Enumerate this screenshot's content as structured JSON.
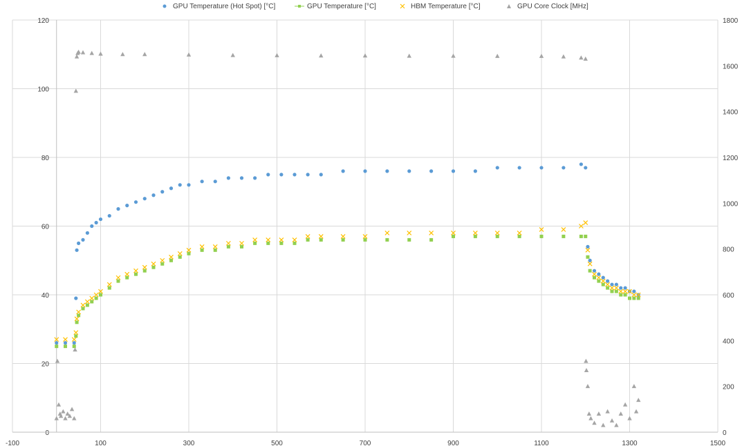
{
  "chart_data": {
    "type": "scatter",
    "title": "",
    "xlabel": "",
    "ylabel": "",
    "y2label": "",
    "xlim": [
      -100,
      1500
    ],
    "ylim": [
      0,
      120
    ],
    "y2lim": [
      0,
      1800
    ],
    "x_ticks": [
      "-100",
      "100",
      "300",
      "500",
      "700",
      "900",
      "1100",
      "1300",
      "1500"
    ],
    "y_ticks": [
      "0",
      "20",
      "40",
      "60",
      "80",
      "100",
      "120"
    ],
    "y2_ticks": [
      "0",
      "200",
      "400",
      "600",
      "800",
      "1000",
      "1200",
      "1400",
      "1600",
      "1800"
    ],
    "grid": true,
    "legend_position": "top",
    "series": [
      {
        "name": "GPU Temperature (Hot Spot) [°C]",
        "axis": "left",
        "marker": "circle",
        "color": "#5B9BD5",
        "x": [
          0,
          20,
          40,
          44,
          46,
          50,
          60,
          70,
          80,
          90,
          100,
          120,
          140,
          160,
          180,
          200,
          220,
          240,
          260,
          280,
          300,
          330,
          360,
          390,
          420,
          450,
          480,
          510,
          540,
          570,
          600,
          650,
          700,
          750,
          800,
          850,
          900,
          950,
          1000,
          1050,
          1100,
          1150,
          1190,
          1200,
          1205,
          1210,
          1220,
          1230,
          1240,
          1250,
          1260,
          1270,
          1280,
          1290,
          1300,
          1310,
          1320
        ],
        "y": [
          26,
          26,
          26,
          39,
          53,
          55,
          56,
          58,
          60,
          61,
          62,
          63,
          65,
          66,
          67,
          68,
          69,
          70,
          71,
          72,
          72,
          73,
          73,
          74,
          74,
          74,
          75,
          75,
          75,
          75,
          75,
          76,
          76,
          76,
          76,
          76,
          76,
          76,
          77,
          77,
          77,
          77,
          78,
          77,
          54,
          50,
          47,
          46,
          45,
          44,
          43,
          43,
          42,
          42,
          41,
          41,
          40
        ]
      },
      {
        "name": "GPU Temperature [°C]",
        "axis": "left",
        "marker": "square",
        "color": "#92D050",
        "x": [
          0,
          20,
          40,
          44,
          46,
          50,
          60,
          70,
          80,
          90,
          100,
          120,
          140,
          160,
          180,
          200,
          220,
          240,
          260,
          280,
          300,
          330,
          360,
          390,
          420,
          450,
          480,
          510,
          540,
          570,
          600,
          650,
          700,
          750,
          800,
          850,
          900,
          950,
          1000,
          1050,
          1100,
          1150,
          1190,
          1200,
          1205,
          1210,
          1220,
          1230,
          1240,
          1250,
          1260,
          1270,
          1280,
          1290,
          1300,
          1310,
          1320
        ],
        "y": [
          25,
          25,
          25,
          28,
          32,
          34,
          36,
          37,
          38,
          39,
          40,
          42,
          44,
          45,
          46,
          47,
          48,
          49,
          50,
          51,
          52,
          53,
          53,
          54,
          54,
          55,
          55,
          55,
          55,
          56,
          56,
          56,
          56,
          56,
          56,
          56,
          57,
          57,
          57,
          57,
          57,
          57,
          57,
          57,
          51,
          47,
          45,
          44,
          43,
          42,
          41,
          41,
          40,
          40,
          39,
          39,
          39
        ]
      },
      {
        "name": "HBM Temperature [°C]",
        "axis": "left",
        "marker": "x",
        "color": "#FFC000",
        "x": [
          0,
          20,
          40,
          44,
          46,
          50,
          60,
          70,
          80,
          90,
          100,
          120,
          140,
          160,
          180,
          200,
          220,
          240,
          260,
          280,
          300,
          330,
          360,
          390,
          420,
          450,
          480,
          510,
          540,
          570,
          600,
          650,
          700,
          750,
          800,
          850,
          900,
          950,
          1000,
          1050,
          1100,
          1150,
          1190,
          1200,
          1205,
          1210,
          1220,
          1230,
          1240,
          1250,
          1260,
          1270,
          1280,
          1290,
          1300,
          1310,
          1320
        ],
        "y": [
          27,
          27,
          27,
          29,
          33,
          35,
          37,
          38,
          39,
          40,
          41,
          43,
          45,
          46,
          47,
          48,
          49,
          50,
          51,
          52,
          53,
          54,
          54,
          55,
          55,
          56,
          56,
          56,
          56,
          57,
          57,
          57,
          57,
          58,
          58,
          58,
          58,
          58,
          58,
          58,
          59,
          59,
          60,
          61,
          53,
          49,
          46,
          45,
          44,
          43,
          42,
          42,
          41,
          41,
          41,
          40,
          40
        ]
      },
      {
        "name": "GPU Core Clock [MHz]",
        "axis": "right",
        "marker": "triangle",
        "color": "#A5A5A5",
        "x": [
          0,
          2,
          5,
          8,
          10,
          15,
          20,
          25,
          30,
          35,
          40,
          42,
          44,
          46,
          48,
          50,
          60,
          80,
          100,
          150,
          200,
          300,
          400,
          500,
          600,
          700,
          800,
          900,
          1000,
          1100,
          1150,
          1190,
          1200,
          1201,
          1202,
          1205,
          1208,
          1212,
          1220,
          1230,
          1240,
          1250,
          1260,
          1270,
          1280,
          1290,
          1300,
          1310,
          1315,
          1320
        ],
        "y": [
          60,
          310,
          120,
          80,
          70,
          90,
          60,
          80,
          70,
          100,
          60,
          360,
          1490,
          1640,
          1655,
          1660,
          1658,
          1655,
          1652,
          1650,
          1650,
          1648,
          1646,
          1645,
          1644,
          1644,
          1643,
          1643,
          1642,
          1642,
          1640,
          1635,
          1630,
          310,
          270,
          200,
          80,
          60,
          40,
          80,
          30,
          90,
          50,
          30,
          80,
          120,
          60,
          200,
          90,
          140
        ]
      }
    ]
  }
}
